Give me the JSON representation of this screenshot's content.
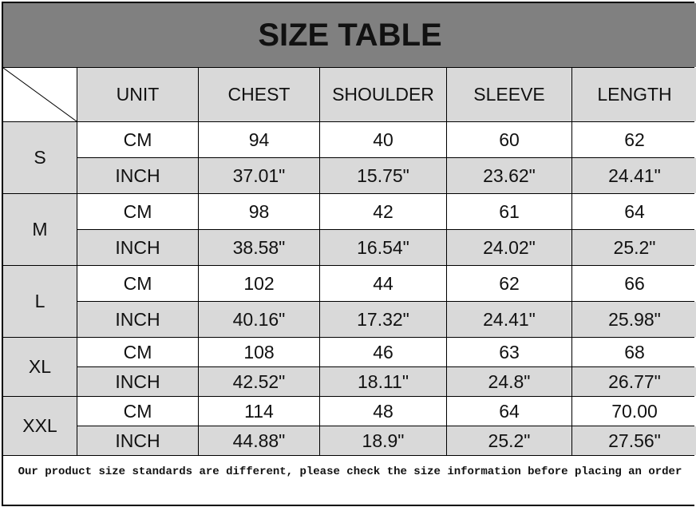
{
  "title": "SIZE TABLE",
  "headers": [
    "UNIT",
    "CHEST",
    "SHOULDER",
    "SLEEVE",
    "LENGTH"
  ],
  "rows": [
    {
      "size": "S",
      "cm": [
        "CM",
        "94",
        "40",
        "60",
        "62"
      ],
      "inch": [
        "INCH",
        "37.01\"",
        "15.75\"",
        "23.62\"",
        "24.41\""
      ]
    },
    {
      "size": "M",
      "cm": [
        "CM",
        "98",
        "42",
        "61",
        "64"
      ],
      "inch": [
        "INCH",
        "38.58\"",
        "16.54\"",
        "24.02\"",
        "25.2\""
      ]
    },
    {
      "size": "L",
      "cm": [
        "CM",
        "102",
        "44",
        "62",
        "66"
      ],
      "inch": [
        "INCH",
        "40.16\"",
        "17.32\"",
        "24.41\"",
        "25.98\""
      ]
    },
    {
      "size": "XL",
      "cm": [
        "CM",
        "108",
        "46",
        "63",
        "68"
      ],
      "inch": [
        "INCH",
        "42.52\"",
        "18.11\"",
        "24.8\"",
        "26.77\""
      ]
    },
    {
      "size": "XXL",
      "cm": [
        "CM",
        "114",
        "48",
        "64",
        "70.00"
      ],
      "inch": [
        "INCH",
        "44.88\"",
        "18.9\"",
        "25.2\"",
        "27.56\""
      ]
    }
  ],
  "footer": "Our product size standards are different, please check the size information before placing an order",
  "colors": {
    "title_bg": "#808080",
    "cell_gray": "#d9d9d9"
  }
}
